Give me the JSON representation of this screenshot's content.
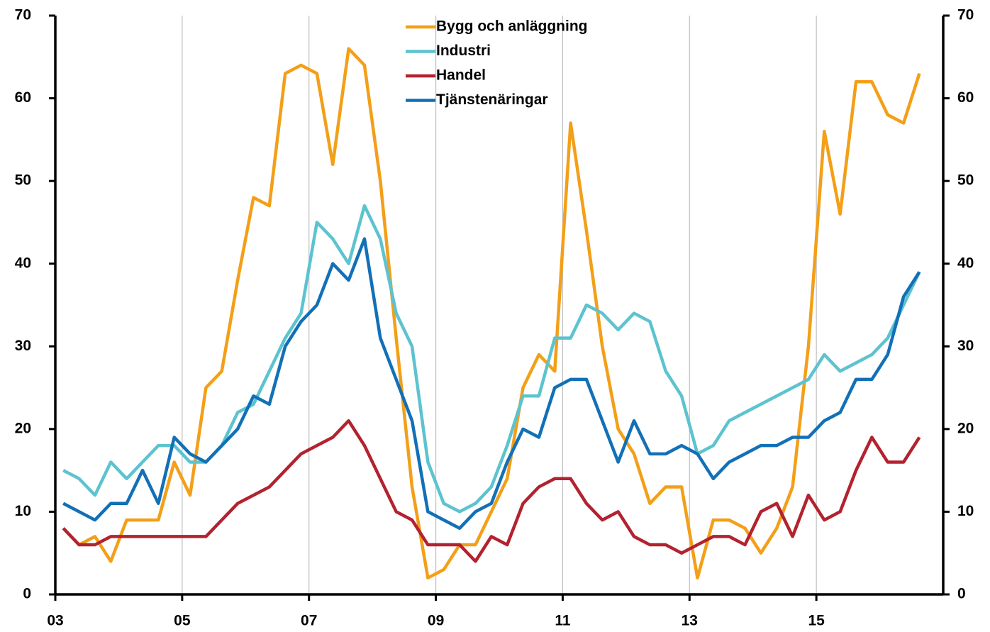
{
  "chart_data": {
    "type": "line",
    "x": [
      2003.125,
      2003.375,
      2003.625,
      2003.875,
      2004.125,
      2004.375,
      2004.625,
      2004.875,
      2005.125,
      2005.375,
      2005.625,
      2005.875,
      2006.125,
      2006.375,
      2006.625,
      2006.875,
      2007.125,
      2007.375,
      2007.625,
      2007.875,
      2008.125,
      2008.375,
      2008.625,
      2008.875,
      2009.125,
      2009.375,
      2009.625,
      2009.875,
      2010.125,
      2010.375,
      2010.625,
      2010.875,
      2011.125,
      2011.375,
      2011.625,
      2011.875,
      2012.125,
      2012.375,
      2012.625,
      2012.875,
      2013.125,
      2013.375,
      2013.625,
      2013.875,
      2014.125,
      2014.375,
      2014.625,
      2014.875,
      2015.125,
      2015.375,
      2015.625,
      2015.875,
      2016.125,
      2016.375,
      2016.625
    ],
    "series": [
      {
        "name": "Bygg och anläggning",
        "color": "#f39f18",
        "values": [
          8,
          6,
          7,
          4,
          9,
          9,
          9,
          16,
          12,
          25,
          27,
          38,
          48,
          47,
          63,
          64,
          63,
          52,
          66,
          64,
          50,
          31,
          13,
          2,
          3,
          6,
          6,
          10,
          14,
          25,
          29,
          27,
          57,
          44,
          30,
          20,
          17,
          11,
          13,
          13,
          2,
          9,
          9,
          8,
          5,
          8,
          13,
          30,
          56,
          46,
          62,
          62,
          58,
          57,
          63
        ]
      },
      {
        "name": "Industri",
        "color": "#5cc3cf",
        "values": [
          15,
          14,
          12,
          16,
          14,
          16,
          18,
          18,
          16,
          16,
          18,
          22,
          23,
          27,
          31,
          34,
          45,
          43,
          40,
          47,
          43,
          34,
          30,
          16,
          11,
          10,
          11,
          13,
          18,
          24,
          24,
          31,
          31,
          35,
          34,
          32,
          34,
          33,
          27,
          24,
          17,
          18,
          21,
          22,
          23,
          24,
          25,
          26,
          29,
          27,
          28,
          29,
          31,
          35,
          39
        ]
      },
      {
        "name": "Handel",
        "color": "#b3222f",
        "values": [
          8,
          6,
          6,
          7,
          7,
          7,
          7,
          7,
          7,
          7,
          9,
          11,
          12,
          13,
          15,
          17,
          18,
          19,
          21,
          18,
          14,
          10,
          9,
          6,
          6,
          6,
          4,
          7,
          6,
          11,
          13,
          14,
          14,
          11,
          9,
          10,
          7,
          6,
          6,
          5,
          6,
          7,
          7,
          6,
          10,
          11,
          7,
          12,
          9,
          10,
          15,
          19,
          16,
          16,
          19
        ]
      },
      {
        "name": "Tjänstenäringar",
        "color": "#1270b7",
        "values": [
          11,
          10,
          9,
          11,
          11,
          15,
          11,
          19,
          17,
          16,
          18,
          20,
          24,
          23,
          30,
          33,
          35,
          40,
          38,
          43,
          31,
          26,
          21,
          10,
          9,
          8,
          10,
          11,
          16,
          20,
          19,
          25,
          26,
          26,
          21,
          16,
          21,
          17,
          17,
          18,
          17,
          14,
          16,
          17,
          18,
          18,
          19,
          19,
          21,
          22,
          26,
          26,
          29,
          36,
          39
        ]
      }
    ],
    "xlim": [
      2003,
      2017
    ],
    "xticks": [
      {
        "value": 2003,
        "label": "03"
      },
      {
        "value": 2005,
        "label": "05"
      },
      {
        "value": 2007,
        "label": "07"
      },
      {
        "value": 2009,
        "label": "09"
      },
      {
        "value": 2011,
        "label": "11"
      },
      {
        "value": 2013,
        "label": "13"
      },
      {
        "value": 2015,
        "label": "15"
      }
    ],
    "ylim": [
      0,
      70
    ],
    "yticks": [
      0,
      10,
      20,
      30,
      40,
      50,
      60,
      70
    ],
    "y2lim": [
      0,
      70
    ],
    "y2ticks": [
      0,
      10,
      20,
      30,
      40,
      50,
      60,
      70
    ],
    "grid": "x",
    "legend": "top"
  }
}
